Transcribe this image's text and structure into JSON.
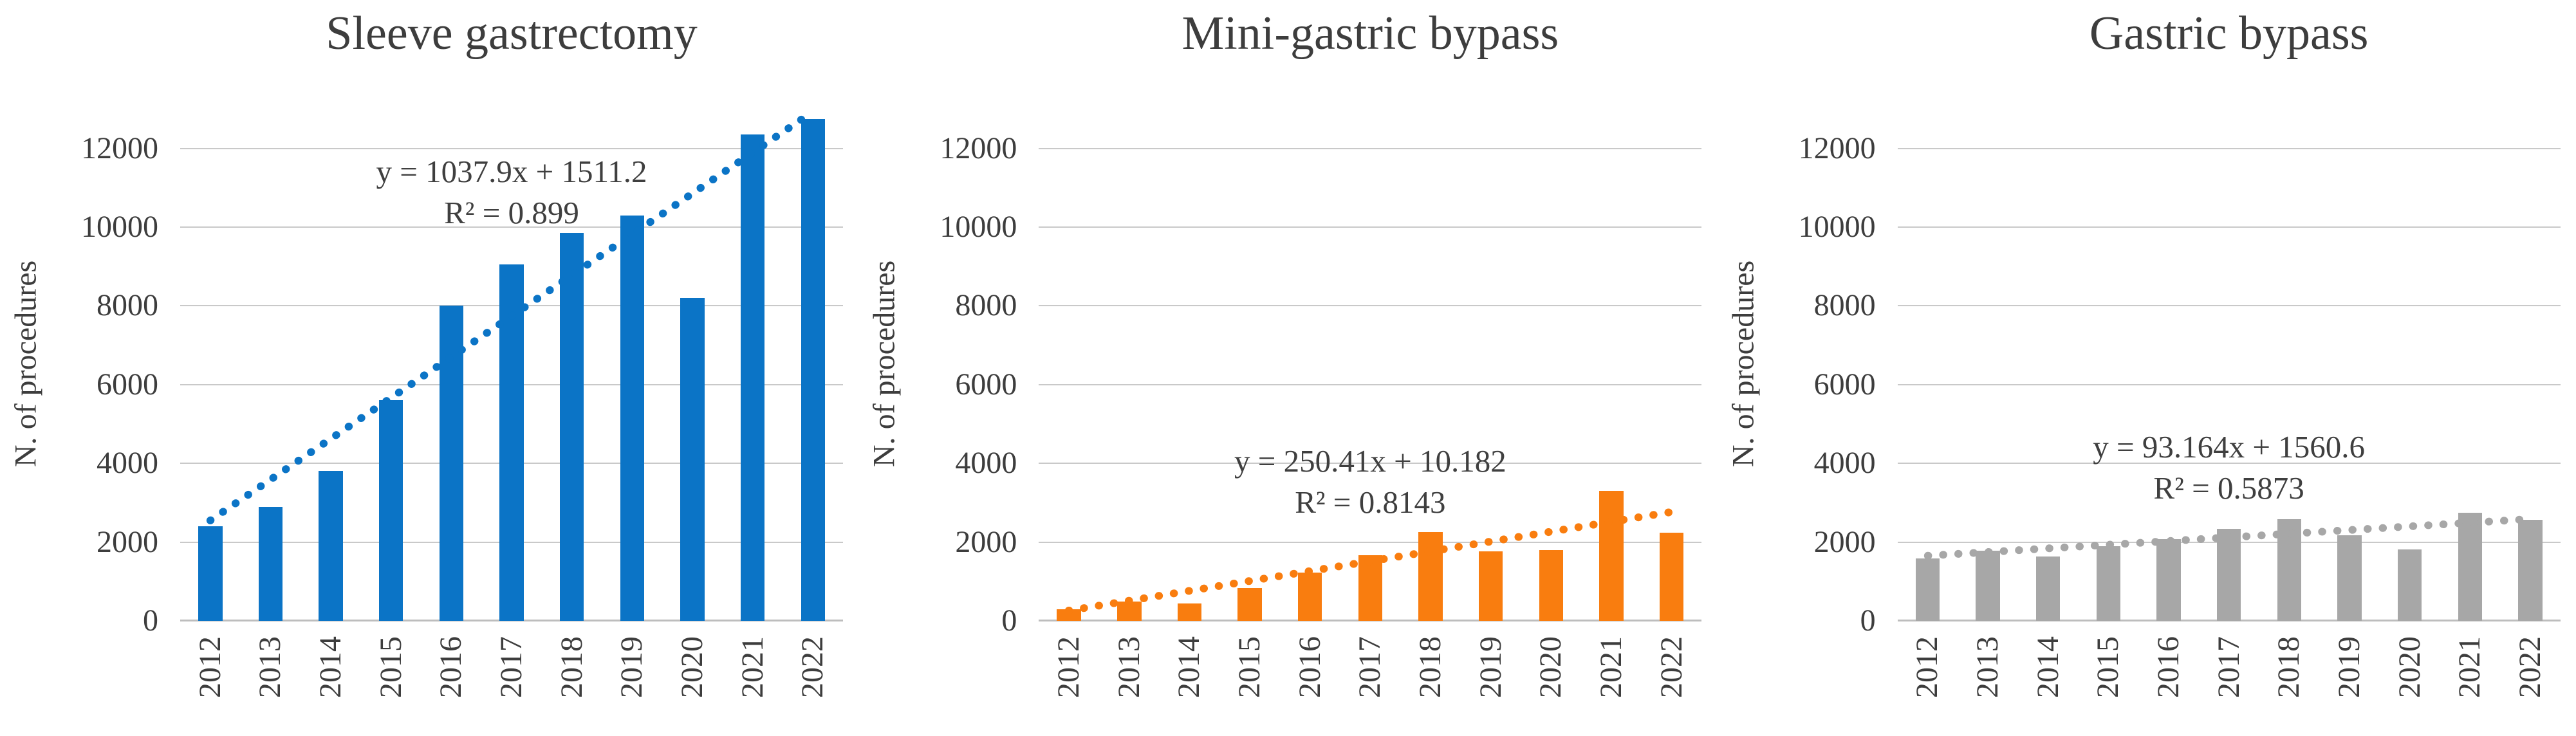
{
  "figure": {
    "description": "Three bar charts of bariatric procedures per year with linear trendlines",
    "y_axis_label": "N. of procedures",
    "text_color": "#3d3d3d",
    "gridline_color": "#c9c9c9"
  },
  "chart_data": [
    {
      "type": "bar",
      "title": "Sleeve gastrectomy",
      "ylabel": "N. of procedures",
      "xlabel": "",
      "categories": [
        "2012",
        "2013",
        "2014",
        "2015",
        "2016",
        "2017",
        "2018",
        "2019",
        "2020",
        "2021",
        "2022"
      ],
      "values": [
        2400,
        2900,
        3800,
        5600,
        8000,
        9050,
        9850,
        10300,
        8200,
        12350,
        12750
      ],
      "bar_color": "#0b74c6",
      "trendline": {
        "type": "linear",
        "slope": 1037.9,
        "intercept": 1511.2,
        "style": "dotted"
      },
      "equation": "y = 1037.9x + 1511.2",
      "r2": "R² = 0.899",
      "y_ticks": [
        0,
        2000,
        4000,
        6000,
        8000,
        10000,
        12000
      ],
      "ylim": [
        0,
        13070
      ],
      "grid": "horizontal",
      "legend": "none"
    },
    {
      "type": "bar",
      "title": "Mini-gastric bypass",
      "ylabel": "N. of procedures",
      "xlabel": "",
      "categories": [
        "2012",
        "2013",
        "2014",
        "2015",
        "2016",
        "2017",
        "2018",
        "2019",
        "2020",
        "2021",
        "2022"
      ],
      "values": [
        300,
        490,
        440,
        830,
        1230,
        1670,
        2250,
        1770,
        1800,
        3300,
        2240
      ],
      "bar_color": "#f97d0f",
      "trendline": {
        "type": "linear",
        "slope": 250.41,
        "intercept": 10.182,
        "style": "dotted"
      },
      "equation": "y = 250.41x + 10.182",
      "r2": "R² = 0.8143",
      "y_ticks": [
        0,
        2000,
        4000,
        6000,
        8000,
        10000,
        12000
      ],
      "ylim": [
        0,
        13070
      ],
      "grid": "horizontal",
      "legend": "none"
    },
    {
      "type": "bar",
      "title": "Gastric bypass",
      "ylabel": "N. of procedures",
      "xlabel": "",
      "categories": [
        "2012",
        "2013",
        "2014",
        "2015",
        "2016",
        "2017",
        "2018",
        "2019",
        "2020",
        "2021",
        "2022"
      ],
      "values": [
        1590,
        1780,
        1630,
        1900,
        2080,
        2330,
        2580,
        2180,
        1810,
        2740,
        2570
      ],
      "bar_color": "#a7a7a7",
      "trendline": {
        "type": "linear",
        "slope": 93.164,
        "intercept": 1560.6,
        "style": "dotted"
      },
      "equation": "y = 93.164x + 1560.6",
      "r2": "R² = 0.5873",
      "y_ticks": [
        0,
        2000,
        4000,
        6000,
        8000,
        10000,
        12000
      ],
      "ylim": [
        0,
        13070
      ],
      "grid": "horizontal",
      "legend": "none"
    }
  ]
}
